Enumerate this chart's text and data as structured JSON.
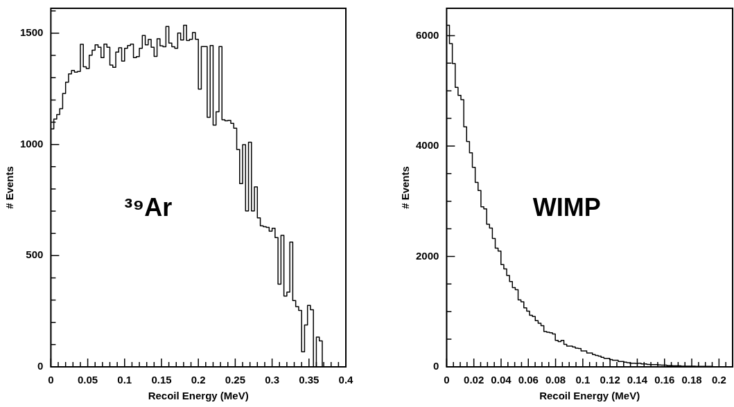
{
  "chart_data": [
    {
      "type": "histogram",
      "xlabel": "Recoil Energy (MeV)",
      "ylabel": "# Events",
      "annotations": [
        "³⁹Ar"
      ],
      "color": "#000000",
      "bins": [
        0,
        0.004,
        0.008,
        0.012,
        0.016,
        0.02,
        0.024,
        0.028,
        0.032,
        0.036,
        0.04,
        0.044,
        0.048,
        0.052,
        0.056,
        0.06,
        0.064,
        0.068,
        0.072,
        0.076,
        0.08,
        0.084,
        0.088,
        0.092,
        0.096,
        0.1,
        0.104,
        0.108,
        0.112,
        0.116,
        0.12,
        0.124,
        0.128,
        0.132,
        0.136,
        0.14,
        0.144,
        0.148,
        0.152,
        0.156,
        0.16,
        0.164,
        0.168,
        0.172,
        0.176,
        0.18,
        0.184,
        0.188,
        0.192,
        0.196,
        0.2,
        0.204,
        0.208,
        0.212,
        0.216,
        0.22,
        0.224,
        0.228,
        0.232,
        0.236,
        0.24,
        0.244,
        0.248,
        0.252,
        0.256,
        0.26,
        0.264,
        0.268,
        0.272,
        0.276,
        0.28,
        0.284,
        0.288,
        0.292,
        0.296,
        0.3,
        0.304,
        0.308,
        0.312,
        0.316,
        0.32,
        0.324,
        0.328,
        0.332,
        0.336,
        0.34,
        0.344,
        0.348,
        0.352,
        0.356,
        0.36,
        0.364,
        0.368,
        0.372,
        0.376,
        0.38,
        0.384,
        0.388,
        0.392,
        0.396,
        0.4
      ],
      "values": [
        1070,
        1114,
        1134,
        1161,
        1229,
        1280,
        1317,
        1333,
        1325,
        1328,
        1450,
        1349,
        1341,
        1401,
        1424,
        1448,
        1437,
        1390,
        1451,
        1437,
        1357,
        1347,
        1415,
        1435,
        1375,
        1432,
        1445,
        1451,
        1390,
        1395,
        1432,
        1490,
        1448,
        1472,
        1437,
        1396,
        1475,
        1443,
        1439,
        1530,
        1456,
        1439,
        1432,
        1501,
        1470,
        1536,
        1467,
        1473,
        1503,
        1473,
        1249,
        1440,
        1440,
        1122,
        1445,
        1087,
        1147,
        1440,
        1111,
        1106,
        1108,
        1095,
        1073,
        977,
        824,
        999,
        701,
        1010,
        701,
        809,
        670,
        634,
        630,
        627,
        610,
        623,
        581,
        372,
        591,
        318,
        336,
        561,
        298,
        271,
        254,
        68,
        188,
        276,
        257,
        0,
        134,
        117,
        0,
        0,
        0,
        0,
        0,
        0,
        0,
        0
      ],
      "xlim": [
        0,
        0.4
      ],
      "ylim": [
        0,
        1612
      ],
      "xticks": [
        0,
        {
          "value": 0.01,
          "label": null
        },
        {
          "value": 0.02,
          "label": null
        },
        {
          "value": 0.03,
          "label": null
        },
        {
          "value": 0.04,
          "label": null
        },
        0.05,
        {
          "value": 0.06,
          "label": null
        },
        {
          "value": 0.07,
          "label": null
        },
        {
          "value": 0.08,
          "label": null
        },
        {
          "value": 0.09,
          "label": null
        },
        0.1,
        {
          "value": 0.11,
          "label": null
        },
        {
          "value": 0.12,
          "label": null
        },
        {
          "value": 0.13,
          "label": null
        },
        {
          "value": 0.14,
          "label": null
        },
        0.15,
        {
          "value": 0.16,
          "label": null
        },
        {
          "value": 0.17,
          "label": null
        },
        {
          "value": 0.18,
          "label": null
        },
        {
          "value": 0.19,
          "label": null
        },
        0.2,
        {
          "value": 0.21,
          "label": null
        },
        {
          "value": 0.22,
          "label": null
        },
        {
          "value": 0.23,
          "label": null
        },
        {
          "value": 0.24,
          "label": null
        },
        0.25,
        {
          "value": 0.26,
          "label": null
        },
        {
          "value": 0.27,
          "label": null
        },
        {
          "value": 0.28,
          "label": null
        },
        {
          "value": 0.29,
          "label": null
        },
        0.3,
        {
          "value": 0.31,
          "label": null
        },
        {
          "value": 0.32,
          "label": null
        },
        {
          "value": 0.33,
          "label": null
        },
        {
          "value": 0.34,
          "label": null
        },
        0.35,
        {
          "value": 0.36,
          "label": null
        },
        {
          "value": 0.37,
          "label": null
        },
        {
          "value": 0.38,
          "label": null
        },
        {
          "value": 0.39,
          "label": null
        },
        0.4
      ],
      "yticks": [
        0,
        {
          "value": 100,
          "label": null
        },
        {
          "value": 200,
          "label": null
        },
        {
          "value": 300,
          "label": null
        },
        {
          "value": 400,
          "label": null
        },
        500,
        {
          "value": 600,
          "label": null
        },
        {
          "value": 700,
          "label": null
        },
        {
          "value": 800,
          "label": null
        },
        {
          "value": 900,
          "label": null
        },
        1000,
        {
          "value": 1100,
          "label": null
        },
        {
          "value": 1200,
          "label": null
        },
        {
          "value": 1300,
          "label": null
        },
        {
          "value": 1400,
          "label": null
        },
        1500,
        {
          "value": 1600,
          "label": null
        }
      ]
    },
    {
      "type": "histogram",
      "xlabel": "Recoil Energy (MeV)",
      "ylabel": "# Events",
      "annotations": [
        "WIMP"
      ],
      "color": "#000000",
      "bins": [
        0,
        0.0021,
        0.0042,
        0.0063,
        0.0084,
        0.0105,
        0.0126,
        0.0147,
        0.0168,
        0.0189,
        0.021,
        0.0231,
        0.0252,
        0.0273,
        0.0294,
        0.0315,
        0.0336,
        0.0357,
        0.0378,
        0.0399,
        0.042,
        0.0441,
        0.0462,
        0.0483,
        0.0504,
        0.0525,
        0.0546,
        0.0567,
        0.0588,
        0.0609,
        0.063,
        0.0651,
        0.0672,
        0.0693,
        0.0714,
        0.0735,
        0.0756,
        0.0777,
        0.0798,
        0.0819,
        0.084,
        0.0861,
        0.0882,
        0.0903,
        0.0924,
        0.0945,
        0.0966,
        0.0987,
        0.1008,
        0.1029,
        0.105,
        0.1071,
        0.1092,
        0.1113,
        0.1134,
        0.1155,
        0.1176,
        0.1197,
        0.1218,
        0.1239,
        0.126,
        0.1281,
        0.1302,
        0.1323,
        0.1344,
        0.1365,
        0.1386,
        0.1407,
        0.1428,
        0.1449,
        0.147,
        0.1491,
        0.1512,
        0.1533,
        0.1554,
        0.1575,
        0.1596,
        0.1617,
        0.1638,
        0.1659,
        0.168,
        0.1701,
        0.1722,
        0.1743,
        0.1764,
        0.1785,
        0.1806,
        0.1827,
        0.1848,
        0.1869,
        0.189,
        0.1911,
        0.1932,
        0.1953,
        0.1974,
        0.1995,
        0.2016,
        0.2037,
        0.2058,
        0.2079,
        0.21
      ],
      "values": [
        6186,
        5855,
        5493,
        5061,
        4919,
        4840,
        4346,
        4081,
        3878,
        3613,
        3340,
        3194,
        2899,
        2863,
        2581,
        2515,
        2325,
        2149,
        2096,
        1853,
        1774,
        1655,
        1544,
        1434,
        1399,
        1213,
        1178,
        1068,
        1010,
        935,
        913,
        838,
        790,
        746,
        640,
        627,
        618,
        596,
        481,
        459,
        481,
        406,
        375,
        375,
        362,
        340,
        331,
        287,
        287,
        251,
        251,
        221,
        207,
        194,
        172,
        154,
        154,
        132,
        119,
        119,
        97,
        97,
        84,
        75,
        66,
        66,
        62,
        66,
        53,
        53,
        44,
        40,
        40,
        40,
        35,
        31,
        31,
        22,
        22,
        18,
        18,
        18,
        13,
        13,
        13,
        13,
        13,
        9,
        9,
        9,
        9,
        9,
        9,
        4,
        4,
        4,
        4,
        4,
        4,
        4
      ],
      "xlim": [
        0,
        0.21
      ],
      "ylim": [
        0,
        6494
      ],
      "xticks": [
        0,
        {
          "value": 0.005,
          "label": null
        },
        {
          "value": 0.01,
          "label": null
        },
        {
          "value": 0.015,
          "label": null
        },
        0.02,
        {
          "value": 0.025,
          "label": null
        },
        {
          "value": 0.03,
          "label": null
        },
        {
          "value": 0.035,
          "label": null
        },
        0.04,
        {
          "value": 0.045,
          "label": null
        },
        {
          "value": 0.05,
          "label": null
        },
        {
          "value": 0.055,
          "label": null
        },
        0.06,
        {
          "value": 0.065,
          "label": null
        },
        {
          "value": 0.07,
          "label": null
        },
        {
          "value": 0.075,
          "label": null
        },
        0.08,
        {
          "value": 0.085,
          "label": null
        },
        {
          "value": 0.09,
          "label": null
        },
        {
          "value": 0.095,
          "label": null
        },
        0.1,
        {
          "value": 0.105,
          "label": null
        },
        {
          "value": 0.11,
          "label": null
        },
        {
          "value": 0.115,
          "label": null
        },
        0.12,
        {
          "value": 0.125,
          "label": null
        },
        {
          "value": 0.13,
          "label": null
        },
        {
          "value": 0.135,
          "label": null
        },
        0.14,
        {
          "value": 0.145,
          "label": null
        },
        {
          "value": 0.15,
          "label": null
        },
        {
          "value": 0.155,
          "label": null
        },
        0.16,
        {
          "value": 0.165,
          "label": null
        },
        {
          "value": 0.17,
          "label": null
        },
        {
          "value": 0.175,
          "label": null
        },
        0.18,
        {
          "value": 0.185,
          "label": null
        },
        {
          "value": 0.19,
          "label": null
        },
        {
          "value": 0.195,
          "label": null
        },
        0.2,
        {
          "value": 0.205,
          "label": null
        }
      ],
      "yticks": [
        0,
        {
          "value": 500,
          "label": null
        },
        {
          "value": 1000,
          "label": null
        },
        {
          "value": 1500,
          "label": null
        },
        2000,
        {
          "value": 2500,
          "label": null
        },
        {
          "value": 3000,
          "label": null
        },
        {
          "value": 3500,
          "label": null
        },
        4000,
        {
          "value": 4500,
          "label": null
        },
        {
          "value": 5000,
          "label": null
        },
        {
          "value": 5500,
          "label": null
        },
        6000
      ]
    }
  ]
}
